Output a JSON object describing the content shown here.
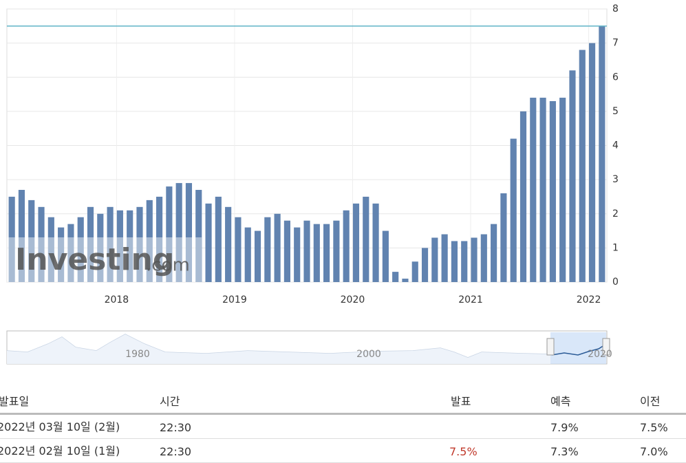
{
  "chart_data": {
    "type": "bar",
    "categories": [
      null,
      null,
      null,
      null,
      null,
      null,
      null,
      null,
      null,
      null,
      null,
      "2018",
      null,
      null,
      null,
      null,
      null,
      null,
      null,
      null,
      null,
      null,
      null,
      "2019",
      null,
      null,
      null,
      null,
      null,
      null,
      null,
      null,
      null,
      null,
      null,
      "2020",
      null,
      null,
      null,
      null,
      null,
      null,
      null,
      null,
      null,
      null,
      null,
      "2021",
      null,
      null,
      null,
      null,
      null,
      null,
      null,
      null,
      null,
      null,
      null,
      "2022",
      null
    ],
    "values": [
      2.5,
      2.7,
      2.4,
      2.2,
      1.9,
      1.6,
      1.7,
      1.9,
      2.2,
      2.0,
      2.2,
      2.1,
      2.1,
      2.2,
      2.4,
      2.5,
      2.8,
      2.9,
      2.9,
      2.7,
      2.3,
      2.5,
      2.2,
      1.9,
      1.6,
      1.5,
      1.9,
      2.0,
      1.8,
      1.6,
      1.8,
      1.7,
      1.7,
      1.8,
      2.1,
      2.3,
      2.5,
      2.3,
      1.5,
      0.3,
      0.1,
      0.6,
      1.0,
      1.3,
      1.4,
      1.2,
      1.2,
      1.3,
      1.4,
      1.7,
      2.6,
      4.2,
      5.0,
      5.4,
      5.4,
      5.3,
      5.4,
      6.2,
      6.8,
      7.0,
      7.5
    ],
    "color": "#6183b0",
    "ylim": [
      0,
      8
    ],
    "yticks": [
      0,
      1,
      2,
      3,
      4,
      5,
      6,
      7,
      8
    ],
    "grid": true
  },
  "watermark": {
    "brand": "Investing",
    "suffix": ".com"
  },
  "navigator": {
    "labels": [
      "1980",
      "2000",
      "2020"
    ]
  },
  "table": {
    "headers": [
      "발표일",
      "시간",
      "발표",
      "예측",
      "이전"
    ],
    "rows": [
      [
        "2022년 03월 10일 (2월)",
        "22:30",
        "",
        "7.9%",
        "7.5%"
      ],
      [
        "2022년 02월 10일 (1월)",
        "22:30",
        "7.5%",
        "7.3%",
        "7.0%"
      ]
    ]
  }
}
